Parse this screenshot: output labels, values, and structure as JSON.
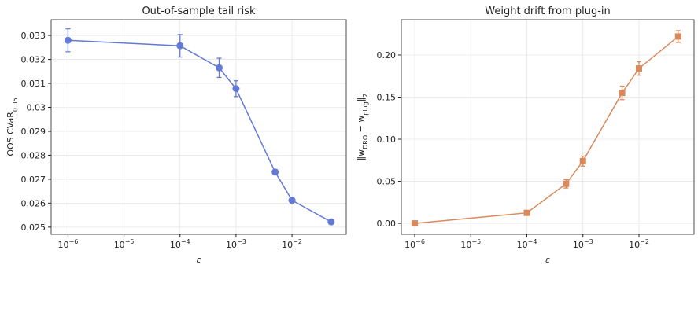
{
  "chart_data": [
    {
      "type": "line",
      "title": "Out-of-sample tail risk",
      "xlabel": "ε",
      "ylabel": [
        {
          "text": "OOS CVaR",
          "sub": false
        },
        {
          "text": "0.05",
          "sub": true
        }
      ],
      "x": [
        1e-06,
        0.0001,
        0.0005,
        0.001,
        0.005,
        0.01,
        0.05
      ],
      "series": [
        {
          "color": "#6279d6",
          "marker": "o",
          "values": [
            0.0328,
            0.03257,
            0.03165,
            0.03078,
            0.0273,
            0.02612,
            0.02522
          ],
          "errors": [
            0.00048,
            0.00047,
            0.0004,
            0.00033,
            0.0001,
            3e-05,
            3e-05
          ]
        }
      ],
      "xscale": "log",
      "xlim": [
        5e-07,
        0.093
      ],
      "xticks": [
        {
          "value": 1e-06,
          "label": "10",
          "exponent": "−6"
        },
        {
          "value": 1e-05,
          "label": "10",
          "exponent": "−5"
        },
        {
          "value": 0.0001,
          "label": "10",
          "exponent": "−4"
        },
        {
          "value": 0.001,
          "label": "10",
          "exponent": "−3"
        },
        {
          "value": 0.01,
          "label": "10",
          "exponent": "−2"
        }
      ],
      "ylim": [
        0.0247,
        0.03366
      ],
      "yticks": [
        0.025,
        0.026,
        0.027,
        0.028,
        0.029,
        0.03,
        0.031,
        0.032,
        0.033
      ],
      "grid": true
    },
    {
      "type": "line",
      "title": "Weight drift from plug-in",
      "xlabel": "ε",
      "ylabel": [
        {
          "text": "‖w",
          "sub": false
        },
        {
          "text": "DRO",
          "sub": true
        },
        {
          "text": " − w",
          "sub": false
        },
        {
          "text": "plug",
          "sub": true
        },
        {
          "text": "‖",
          "sub": false
        },
        {
          "text": "2",
          "sub": true
        }
      ],
      "x": [
        1e-06,
        0.0001,
        0.0005,
        0.001,
        0.005,
        0.01,
        0.05
      ],
      "series": [
        {
          "color": "#d9895b",
          "marker": "s",
          "values": [
            0,
            0.0125,
            0.047,
            0.074,
            0.155,
            0.184,
            0.222
          ],
          "errors": [
            0.002,
            0.002,
            0.005,
            0.006,
            0.008,
            0.008,
            0.007
          ]
        }
      ],
      "xscale": "log",
      "xlim": [
        5.77e-07,
        0.096
      ],
      "xticks": [
        {
          "value": 1e-06,
          "label": "10",
          "exponent": "−6"
        },
        {
          "value": 1e-05,
          "label": "10",
          "exponent": "−5"
        },
        {
          "value": 0.0001,
          "label": "10",
          "exponent": "−4"
        },
        {
          "value": 0.001,
          "label": "10",
          "exponent": "−3"
        },
        {
          "value": 0.01,
          "label": "10",
          "exponent": "−2"
        }
      ],
      "ylim": [
        -0.013,
        0.242
      ],
      "yticks": [
        {
          "value": 0,
          "label": "0.00"
        },
        {
          "value": 0.05,
          "label": "0.05"
        },
        {
          "value": 0.1,
          "label": "0.10"
        },
        {
          "value": 0.15,
          "label": "0.15"
        },
        {
          "value": 0.2,
          "label": "0.20"
        }
      ],
      "grid": true
    }
  ]
}
